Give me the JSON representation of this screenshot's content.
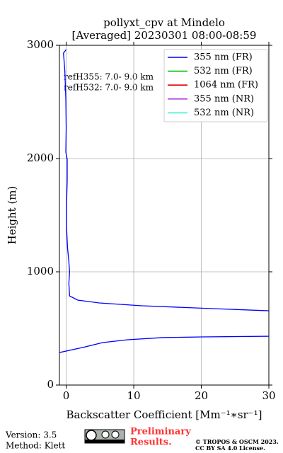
{
  "chart_data": {
    "type": "line",
    "title": "pollyxt_cpv at Mindelo",
    "subtitle": "[Averaged] 20230301 08:00-08:59",
    "xlabel": "Backscatter Coefficient [Mm⁻¹∗sr⁻¹]",
    "ylabel": "Height (m)",
    "xlim": [
      -1,
      30
    ],
    "xticks": [
      0,
      10,
      20,
      30
    ],
    "ylim": [
      0,
      3000
    ],
    "yticks": [
      0,
      1000,
      2000,
      3000
    ],
    "grid": true,
    "legend": "upper right",
    "y": [
      287,
      337,
      375,
      400,
      419,
      425,
      431,
      500,
      600,
      656,
      675,
      700,
      725,
      750,
      787,
      900,
      1000,
      1087,
      1212,
      1400,
      1587,
      1806,
      1994,
      2056,
      2275,
      2525,
      2775,
      2931,
      2962
    ],
    "series": [
      {
        "name": "355 nm (FR)",
        "color": "#0000ff",
        "values": [
          -1,
          2.8,
          5.4,
          9.1,
          14.3,
          20.1,
          30,
          null,
          null,
          30,
          21.6,
          11.2,
          4.9,
          1.7,
          0.5,
          0.4,
          0.5,
          0.4,
          0.2,
          0.05,
          0.05,
          0.15,
          0.15,
          -0.05,
          0,
          -0.05,
          -0.2,
          -0.4,
          0
        ]
      },
      {
        "name": "532 nm (FR)",
        "color": "#00c000",
        "values": [
          null,
          null,
          null,
          null,
          null,
          null,
          null,
          null,
          null,
          null,
          null,
          null,
          null,
          null,
          null,
          null,
          null,
          null,
          null,
          null,
          null,
          null,
          null,
          null,
          null,
          null,
          null,
          null,
          null
        ]
      },
      {
        "name": "1064 nm (FR)",
        "color": "#e00000",
        "values": [
          null,
          null,
          null,
          null,
          null,
          null,
          null,
          null,
          null,
          null,
          null,
          null,
          null,
          null,
          null,
          null,
          null,
          null,
          null,
          null,
          null,
          null,
          null,
          null,
          null,
          null,
          null,
          null,
          null
        ]
      },
      {
        "name": "355 nm (NR)",
        "color": "#b040e0",
        "values": [
          null,
          null,
          null,
          null,
          null,
          null,
          null,
          null,
          null,
          null,
          null,
          null,
          null,
          null,
          null,
          null,
          null,
          null,
          null,
          null,
          null,
          null,
          null,
          null,
          null,
          null,
          null,
          null,
          null
        ]
      },
      {
        "name": "532 nm (NR)",
        "color": "#40f0d0",
        "values": [
          null,
          null,
          null,
          null,
          null,
          null,
          null,
          null,
          null,
          null,
          null,
          null,
          null,
          null,
          null,
          null,
          null,
          null,
          null,
          null,
          null,
          null,
          null,
          null,
          null,
          null,
          null,
          null,
          null
        ]
      }
    ],
    "annotations": [
      "refH355:  7.0- 9.0 km",
      "refH532:  7.0- 9.0 km"
    ]
  },
  "footer": {
    "version": "Version: 3.5",
    "method": "Method: Klett",
    "preliminary": [
      "Preliminary",
      "Results."
    ],
    "copyright": "© TROPOS & OSCM 2023.",
    "license": "CC BY SA 4.0 License."
  }
}
